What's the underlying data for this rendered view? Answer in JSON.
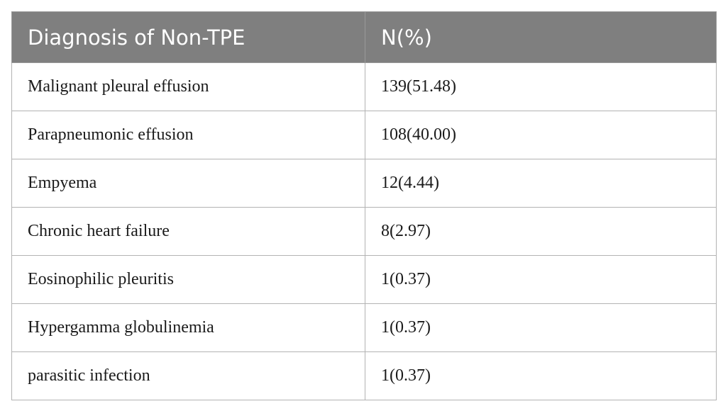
{
  "table": {
    "headers": [
      "Diagnosis of Non-TPE",
      "N(%)"
    ],
    "rows": [
      [
        "Malignant pleural effusion",
        "139(51.48)"
      ],
      [
        "Parapneumonic effusion",
        "108(40.00)"
      ],
      [
        "Empyema",
        "12(4.44)"
      ],
      [
        "Chronic heart failure",
        "8(2.97)"
      ],
      [
        "Eosinophilic pleuritis",
        "1(0.37)"
      ],
      [
        "Hypergamma globulinemia",
        "1(0.37)"
      ],
      [
        "parasitic infection",
        "1(0.37)"
      ]
    ]
  },
  "colors": {
    "header_bg": "#7f7f7f",
    "header_text": "#ffffff",
    "grid": "#b3b3b3"
  }
}
